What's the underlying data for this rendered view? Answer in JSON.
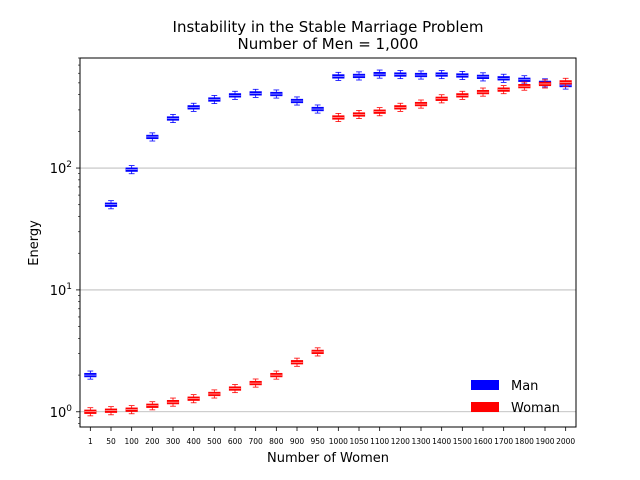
{
  "chart_data": {
    "type": "boxplot",
    "title": "Instability in the Stable Marriage Problem",
    "subtitle": "Number of Men = 1,000",
    "xlabel": "Number of Women",
    "ylabel": "Energy",
    "yscale": "log",
    "ylim": [
      0.75,
      800
    ],
    "yticks": [
      1,
      10,
      100
    ],
    "ytick_labels": [
      {
        "base": "10",
        "exp": "0"
      },
      {
        "base": "10",
        "exp": "1"
      },
      {
        "base": "10",
        "exp": "2"
      }
    ],
    "grid": "horizontal major",
    "legend_position": "lower right",
    "categories": [
      "1",
      "50",
      "100",
      "200",
      "300",
      "400",
      "500",
      "600",
      "700",
      "800",
      "900",
      "950",
      "1000",
      "1050",
      "1100",
      "1200",
      "1300",
      "1400",
      "1500",
      "1600",
      "1700",
      "1800",
      "1900",
      "2000"
    ],
    "series": [
      {
        "name": "Man",
        "color": "#0000ff",
        "values": [
          2.0,
          50,
          97,
          180,
          255,
          315,
          365,
          395,
          410,
          405,
          355,
          305,
          565,
          570,
          590,
          585,
          580,
          585,
          575,
          560,
          545,
          530,
          500,
          480
        ]
      },
      {
        "name": "Woman",
        "color": "#ff0000",
        "values": [
          1.0,
          1.02,
          1.04,
          1.12,
          1.2,
          1.28,
          1.4,
          1.55,
          1.72,
          2.0,
          2.55,
          3.1,
          260,
          275,
          290,
          315,
          335,
          370,
          395,
          420,
          440,
          470,
          490,
          505
        ]
      }
    ]
  }
}
